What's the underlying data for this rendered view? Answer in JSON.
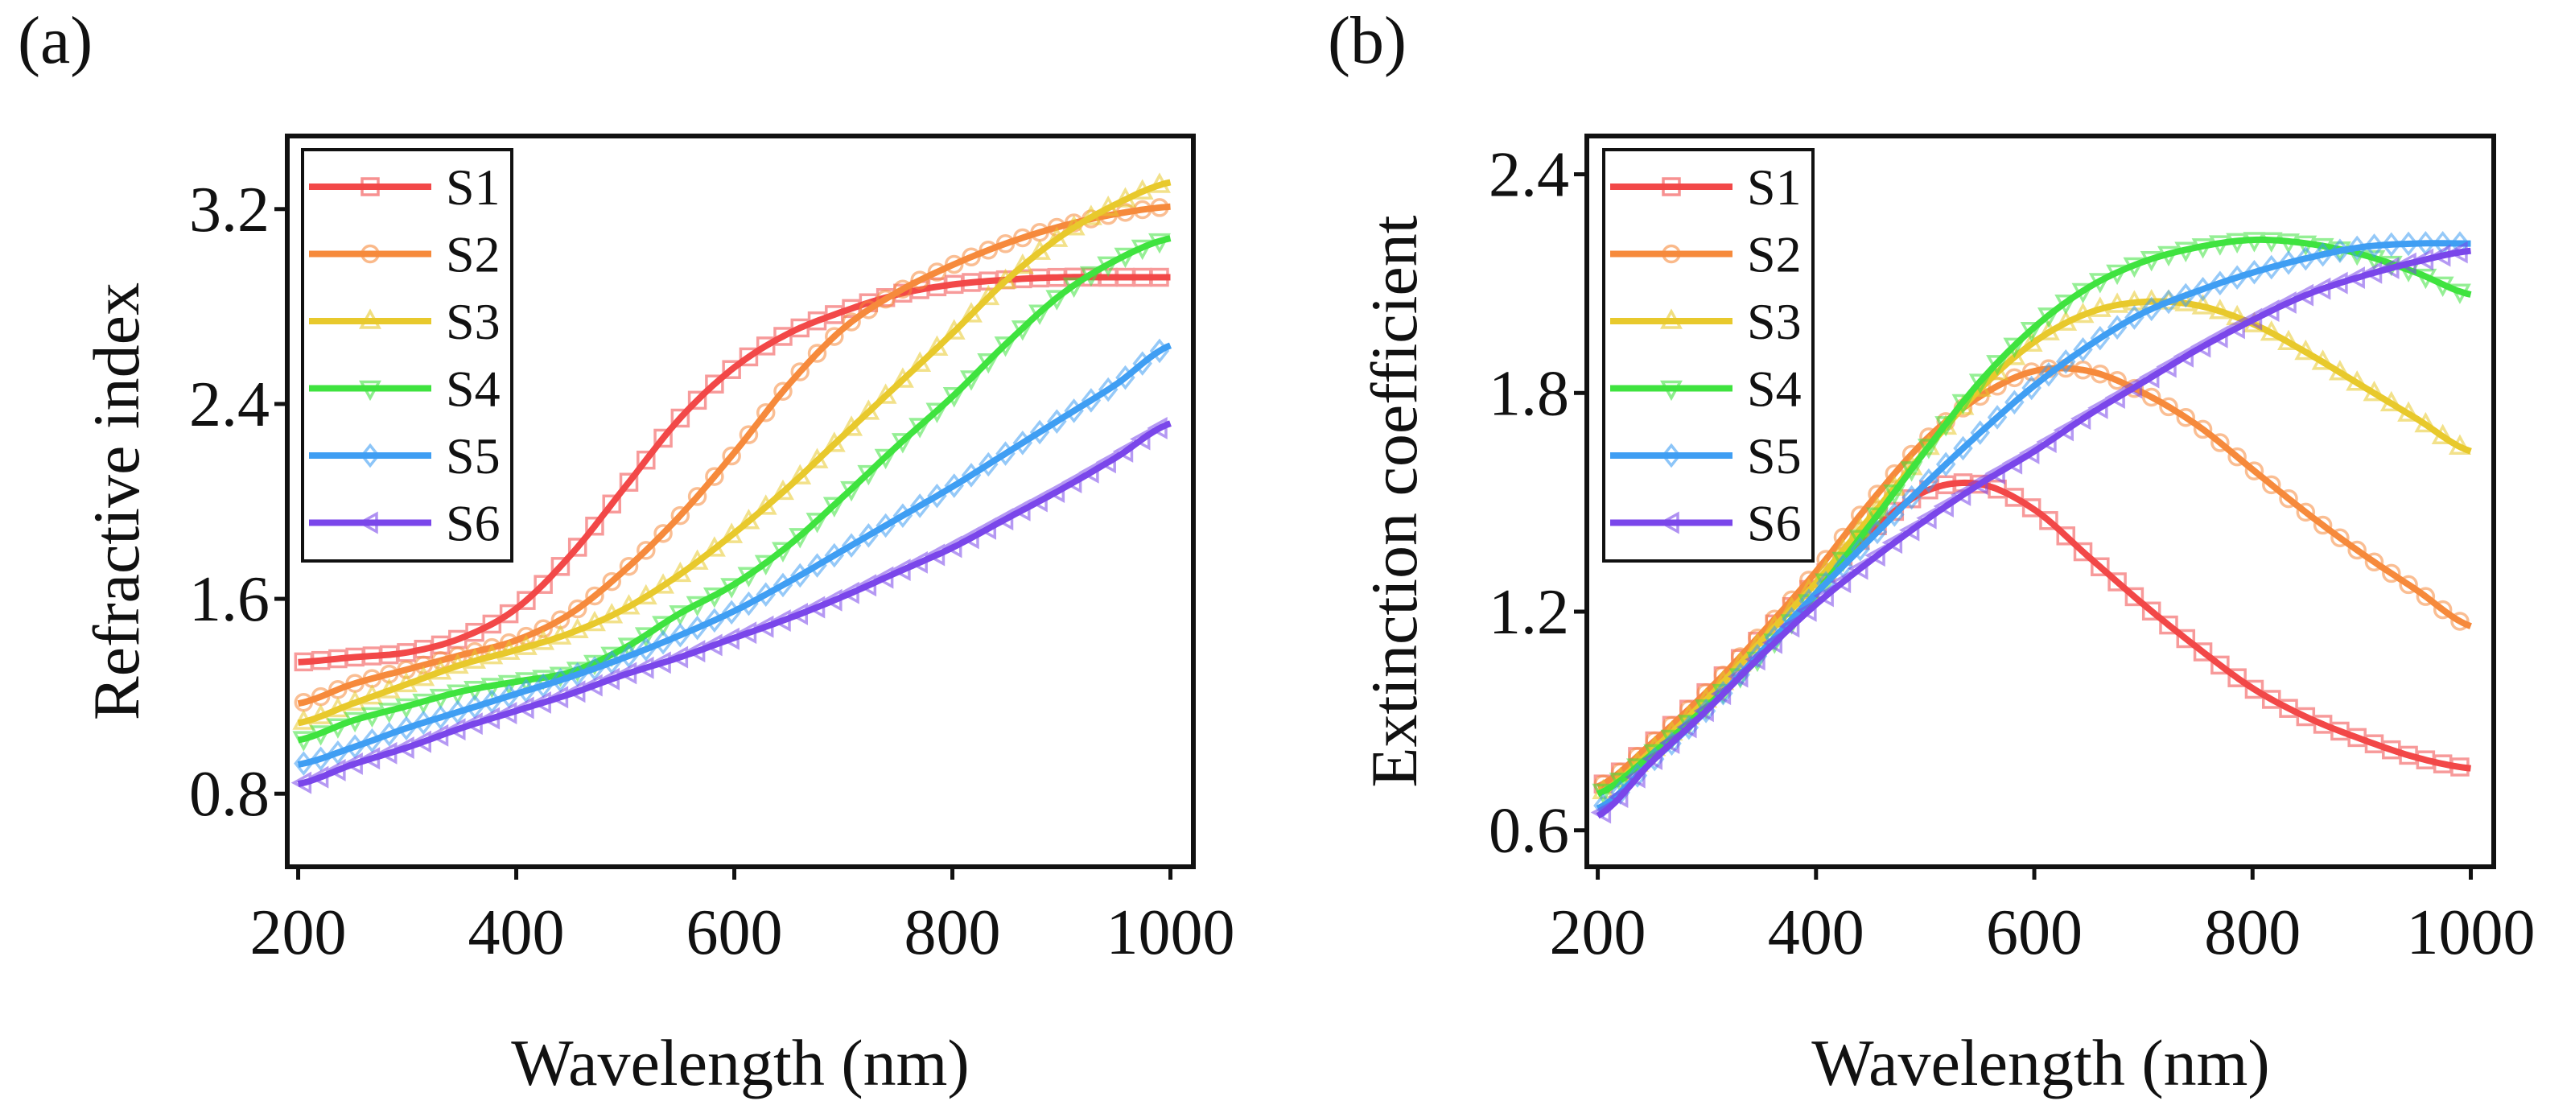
{
  "chart_data": [
    {
      "panel_label": "(a)",
      "type": "line",
      "title": "",
      "xlabel": "Wavelength (nm)",
      "ylabel": "Refractive index",
      "xlim": [
        190,
        1021
      ],
      "ylim": [
        0.5,
        3.5
      ],
      "xticks": [
        200,
        400,
        600,
        800,
        1000
      ],
      "xtick_labels": [
        "200",
        "400",
        "600",
        "800",
        "1000"
      ],
      "yticks": [
        0.8,
        1.6,
        2.4,
        3.2
      ],
      "ytick_labels": [
        "0.8",
        "1.6",
        "2.4",
        "3.2"
      ],
      "grid": false,
      "legend_position": "top-left",
      "x": [
        200,
        250,
        300,
        350,
        400,
        450,
        500,
        550,
        600,
        650,
        700,
        750,
        800,
        850,
        900,
        950,
        1000
      ],
      "series": [
        {
          "name": "S1",
          "color": "#f24848",
          "marker": "square",
          "values": [
            1.34,
            1.36,
            1.38,
            1.44,
            1.56,
            1.78,
            2.06,
            2.34,
            2.55,
            2.69,
            2.78,
            2.85,
            2.89,
            2.91,
            2.92,
            2.92,
            2.92
          ]
        },
        {
          "name": "S2",
          "color": "#f68a3c",
          "marker": "circle",
          "values": [
            1.17,
            1.25,
            1.31,
            1.37,
            1.43,
            1.54,
            1.72,
            1.94,
            2.2,
            2.48,
            2.71,
            2.86,
            2.97,
            3.06,
            3.13,
            3.18,
            3.21
          ]
        },
        {
          "name": "S3",
          "color": "#e8c92c",
          "marker": "triangle-up",
          "values": [
            1.09,
            1.17,
            1.25,
            1.33,
            1.39,
            1.46,
            1.56,
            1.7,
            1.87,
            2.06,
            2.27,
            2.48,
            2.69,
            2.91,
            3.09,
            3.22,
            3.31
          ]
        },
        {
          "name": "S4",
          "color": "#3fe33f",
          "marker": "triangle-down",
          "values": [
            1.02,
            1.1,
            1.16,
            1.22,
            1.26,
            1.3,
            1.4,
            1.54,
            1.66,
            1.82,
            2.02,
            2.23,
            2.43,
            2.65,
            2.85,
            2.99,
            3.08
          ]
        },
        {
          "name": "S5",
          "color": "#3f9ef3",
          "marker": "diamond",
          "values": [
            0.92,
            0.99,
            1.07,
            1.14,
            1.21,
            1.28,
            1.36,
            1.45,
            1.55,
            1.67,
            1.8,
            1.93,
            2.06,
            2.2,
            2.34,
            2.48,
            2.64
          ]
        },
        {
          "name": "S6",
          "color": "#7a46ea",
          "marker": "triangle-left",
          "values": [
            0.84,
            0.92,
            0.99,
            1.07,
            1.14,
            1.21,
            1.29,
            1.36,
            1.44,
            1.52,
            1.61,
            1.71,
            1.81,
            1.93,
            2.05,
            2.18,
            2.32
          ]
        }
      ]
    },
    {
      "panel_label": "(b)",
      "type": "line",
      "title": "",
      "xlabel": "Wavelength (nm)",
      "ylabel": "Extinction coefficient",
      "xlim": [
        190,
        1021
      ],
      "ylim": [
        0.5,
        2.505
      ],
      "xticks": [
        200,
        400,
        600,
        800,
        1000
      ],
      "xtick_labels": [
        "200",
        "400",
        "600",
        "800",
        "1000"
      ],
      "yticks": [
        0.6,
        1.2,
        1.8,
        2.4
      ],
      "ytick_labels": [
        "0.6",
        "1.2",
        "1.8",
        "2.4"
      ],
      "grid": false,
      "legend_position": "top-left",
      "x": [
        200,
        250,
        300,
        350,
        400,
        450,
        500,
        550,
        600,
        650,
        700,
        750,
        800,
        850,
        900,
        950,
        1000
      ],
      "series": [
        {
          "name": "S1",
          "color": "#f24848",
          "marker": "square",
          "values": [
            0.72,
            0.84,
            0.98,
            1.13,
            1.28,
            1.42,
            1.53,
            1.55,
            1.48,
            1.35,
            1.22,
            1.1,
            0.99,
            0.91,
            0.85,
            0.8,
            0.77
          ]
        },
        {
          "name": "S2",
          "color": "#f68a3c",
          "marker": "circle",
          "values": [
            0.72,
            0.84,
            0.98,
            1.14,
            1.31,
            1.5,
            1.67,
            1.79,
            1.86,
            1.86,
            1.8,
            1.71,
            1.59,
            1.47,
            1.36,
            1.26,
            1.16
          ]
        },
        {
          "name": "S3",
          "color": "#e8c92c",
          "marker": "triangle-up",
          "values": [
            0.7,
            0.82,
            0.96,
            1.12,
            1.28,
            1.46,
            1.64,
            1.81,
            1.94,
            2.02,
            2.05,
            2.04,
            1.99,
            1.91,
            1.82,
            1.73,
            1.64
          ]
        },
        {
          "name": "S4",
          "color": "#3fe33f",
          "marker": "triangle-down",
          "values": [
            0.7,
            0.81,
            0.94,
            1.08,
            1.25,
            1.44,
            1.64,
            1.83,
            1.98,
            2.09,
            2.16,
            2.2,
            2.22,
            2.21,
            2.18,
            2.13,
            2.07
          ]
        },
        {
          "name": "S5",
          "color": "#3f9ef3",
          "marker": "diamond",
          "values": [
            0.66,
            0.79,
            0.93,
            1.09,
            1.25,
            1.4,
            1.55,
            1.69,
            1.82,
            1.93,
            2.02,
            2.08,
            2.13,
            2.17,
            2.2,
            2.21,
            2.21
          ]
        },
        {
          "name": "S6",
          "color": "#7a46ea",
          "marker": "triangle-left",
          "values": [
            0.64,
            0.79,
            0.93,
            1.08,
            1.22,
            1.34,
            1.45,
            1.55,
            1.64,
            1.74,
            1.83,
            1.92,
            2.0,
            2.07,
            2.12,
            2.16,
            2.19
          ]
        }
      ]
    }
  ]
}
